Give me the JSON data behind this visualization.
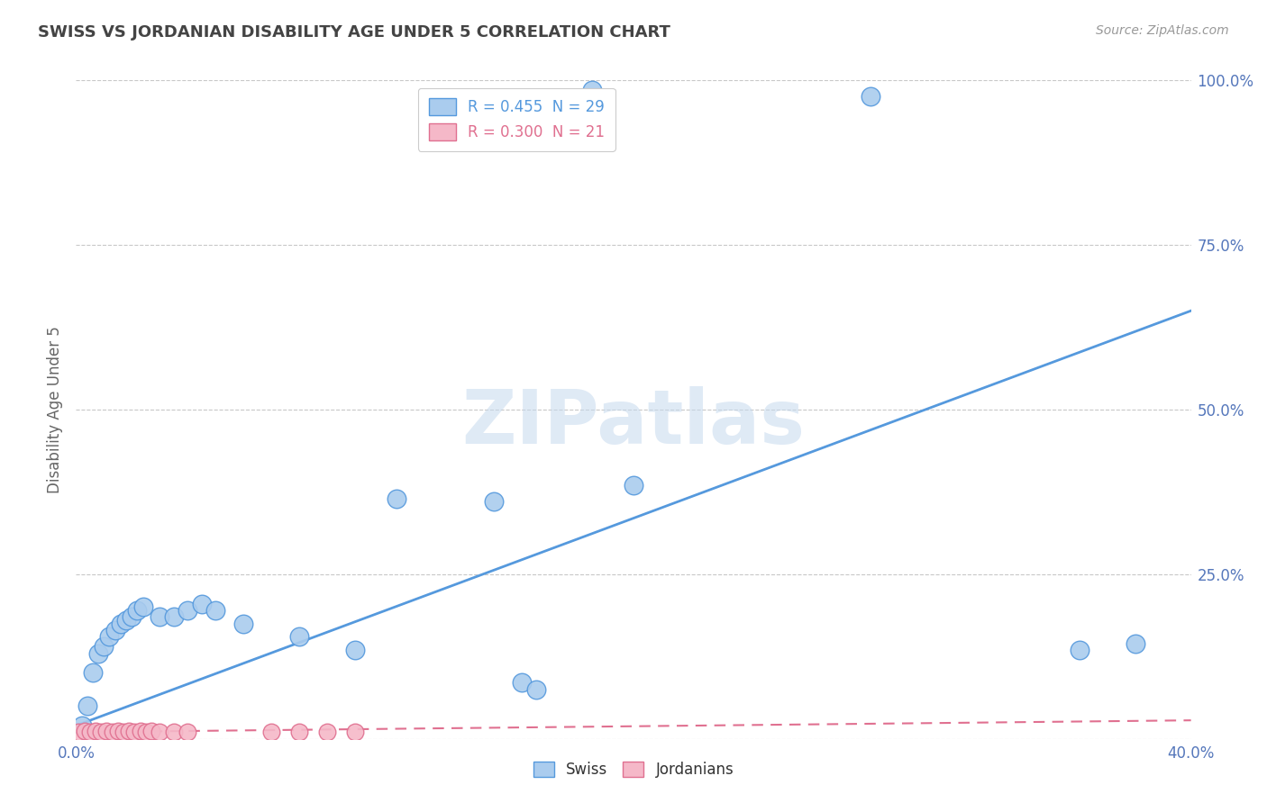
{
  "title": "SWISS VS JORDANIAN DISABILITY AGE UNDER 5 CORRELATION CHART",
  "source": "Source: ZipAtlas.com",
  "ylabel": "Disability Age Under 5",
  "legend_swiss": "R = 0.455  N = 29",
  "legend_jordan": "R = 0.300  N = 21",
  "bottom_legend": [
    "Swiss",
    "Jordanians"
  ],
  "watermark": "ZIPatlas",
  "swiss_color": "#aaccee",
  "jordan_color": "#f5b8c8",
  "swiss_line_color": "#5599dd",
  "jordan_line_color": "#e07090",
  "swiss_x": [
    0.185,
    0.285,
    0.002,
    0.004,
    0.006,
    0.008,
    0.01,
    0.012,
    0.014,
    0.016,
    0.018,
    0.02,
    0.022,
    0.024,
    0.03,
    0.035,
    0.04,
    0.045,
    0.05,
    0.06,
    0.08,
    0.1,
    0.115,
    0.15,
    0.16,
    0.165,
    0.2,
    0.36,
    0.38
  ],
  "swiss_y": [
    0.985,
    0.975,
    0.02,
    0.05,
    0.1,
    0.13,
    0.14,
    0.155,
    0.165,
    0.175,
    0.18,
    0.185,
    0.195,
    0.2,
    0.185,
    0.185,
    0.195,
    0.205,
    0.195,
    0.175,
    0.155,
    0.135,
    0.365,
    0.36,
    0.085,
    0.075,
    0.385,
    0.135,
    0.145
  ],
  "jordan_x": [
    0.001,
    0.003,
    0.005,
    0.007,
    0.009,
    0.011,
    0.013,
    0.015,
    0.017,
    0.019,
    0.021,
    0.023,
    0.025,
    0.027,
    0.03,
    0.035,
    0.04,
    0.07,
    0.08,
    0.09,
    0.1
  ],
  "jordan_y": [
    0.01,
    0.012,
    0.01,
    0.012,
    0.01,
    0.012,
    0.01,
    0.012,
    0.01,
    0.012,
    0.01,
    0.012,
    0.01,
    0.012,
    0.01,
    0.01,
    0.01,
    0.01,
    0.01,
    0.01,
    0.01
  ],
  "xlim": [
    0.0,
    0.4
  ],
  "ylim": [
    0.0,
    1.0
  ],
  "xticks": [
    0.0,
    0.4
  ],
  "xtick_labels": [
    "0.0%",
    "40.0%"
  ],
  "yticks": [
    0.25,
    0.5,
    0.75,
    1.0
  ],
  "ytick_labels": [
    "25.0%",
    "50.0%",
    "75.0%",
    "100.0%"
  ],
  "background_color": "#ffffff",
  "grid_color": "#c8c8c8",
  "title_color": "#444444",
  "source_color": "#999999",
  "tick_color": "#5577bb"
}
